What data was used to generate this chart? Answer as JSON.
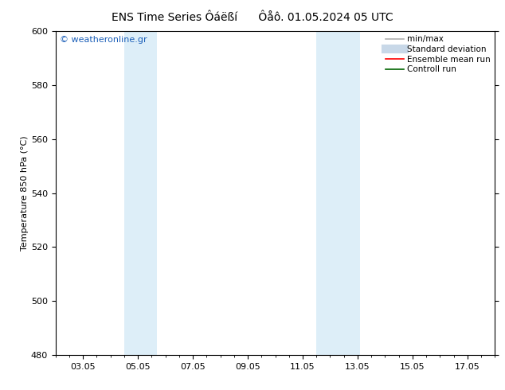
{
  "title": "ENS Time Series Ôáëßí      Ôåô. 01.05.2024 05 UTC",
  "ylabel": "Temperature 850 hPa (°C)",
  "ylim": [
    480,
    600
  ],
  "yticks": [
    480,
    500,
    520,
    540,
    560,
    580,
    600
  ],
  "xlim_min": 2.0,
  "xlim_max": 18.0,
  "xtick_labels": [
    "03.05",
    "05.05",
    "07.05",
    "09.05",
    "11.05",
    "13.05",
    "15.05",
    "17.05"
  ],
  "xtick_positions": [
    3,
    5,
    7,
    9,
    11,
    13,
    15,
    17
  ],
  "shaded_bands": [
    {
      "x_start": 4.5,
      "x_end": 5.7
    },
    {
      "x_start": 11.5,
      "x_end": 13.1
    }
  ],
  "shaded_color": "#ddeef8",
  "background_color": "#ffffff",
  "watermark": "© weatheronline.gr",
  "watermark_color": "#1a5eb8",
  "legend_entries": [
    {
      "label": "min/max",
      "color": "#b0b0b0",
      "linewidth": 1.2,
      "type": "line"
    },
    {
      "label": "Standard deviation",
      "color": "#c8d8e8",
      "linewidth": 8,
      "type": "thick"
    },
    {
      "label": "Ensemble mean run",
      "color": "#ff0000",
      "linewidth": 1.2,
      "type": "line"
    },
    {
      "label": "Controll run",
      "color": "#006400",
      "linewidth": 1.2,
      "type": "line"
    }
  ],
  "title_fontsize": 10,
  "tick_fontsize": 8,
  "ylabel_fontsize": 8,
  "watermark_fontsize": 8,
  "legend_fontsize": 7.5
}
